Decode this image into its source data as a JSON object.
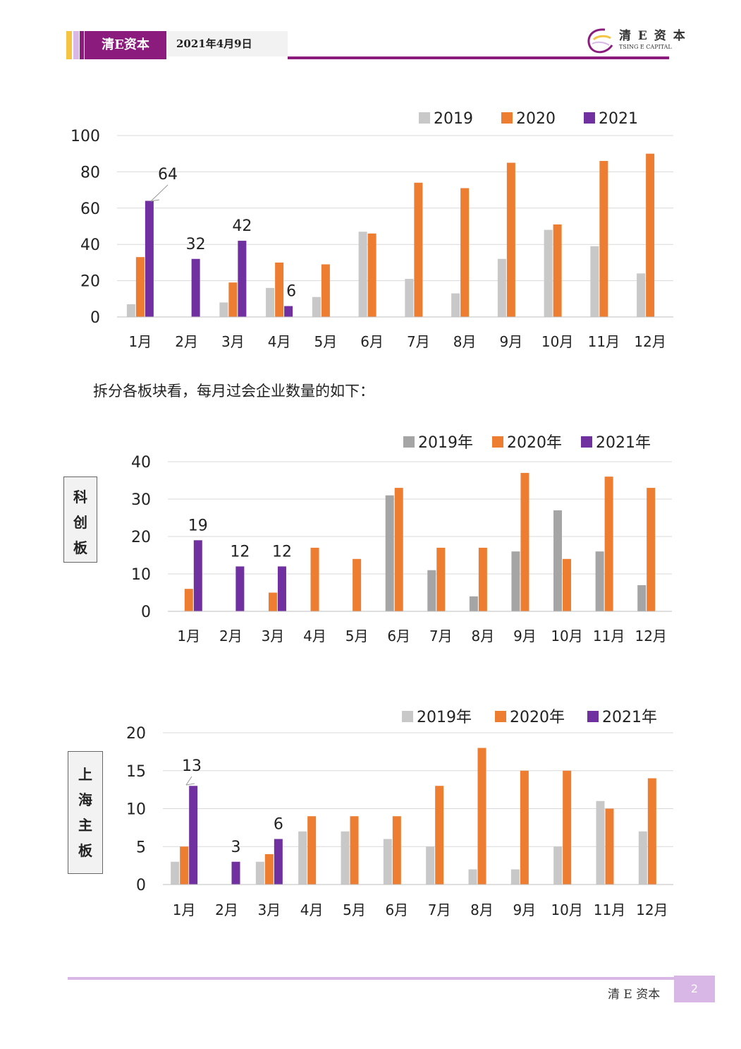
{
  "header": {
    "brand": "清E资本",
    "date": "2021年4月9日",
    "logo_cn": "清 E 资 本",
    "logo_en": "TSING E CAPITAL",
    "colors": {
      "brand": "#8b1c7e",
      "stripe_yellow": "#f4c542",
      "stripe_light": "#d9b8e6"
    }
  },
  "body_text": "拆分各板块看，每月过会企业数量的如下：",
  "boards": [
    {
      "label_chars": [
        "科",
        "创",
        "板"
      ]
    },
    {
      "label_chars": [
        "上",
        "海",
        "主",
        "板"
      ]
    }
  ],
  "footer": {
    "text": "清 E 资本",
    "page": "2"
  },
  "colors": {
    "gray_light": "#c8c8c8",
    "gray_dark": "#a5a5a5",
    "orange": "#ed7d31",
    "purple": "#7030a0"
  },
  "chart_data": [
    {
      "type": "bar",
      "categories": [
        "1月",
        "2月",
        "3月",
        "4月",
        "5月",
        "6月",
        "7月",
        "8月",
        "9月",
        "10月",
        "11月",
        "12月"
      ],
      "series": [
        {
          "name": "2019",
          "color": "#c8c8c8",
          "values": [
            7,
            0,
            8,
            16,
            11,
            47,
            21,
            13,
            32,
            48,
            39,
            24
          ]
        },
        {
          "name": "2020",
          "color": "#ed7d31",
          "values": [
            33,
            0,
            19,
            30,
            29,
            46,
            74,
            71,
            85,
            51,
            86,
            90
          ]
        },
        {
          "name": "2021",
          "color": "#7030a0",
          "values": [
            64,
            32,
            42,
            6,
            null,
            null,
            null,
            null,
            null,
            null,
            null,
            null
          ]
        }
      ],
      "ylim": [
        0,
        100
      ],
      "yticks": [
        0,
        20,
        40,
        60,
        80,
        100
      ],
      "data_labels": [
        "64",
        "32",
        "42",
        "6"
      ],
      "legend": "top-right",
      "grid": true
    },
    {
      "type": "bar",
      "categories": [
        "1月",
        "2月",
        "3月",
        "4月",
        "5月",
        "6月",
        "7月",
        "8月",
        "9月",
        "10月",
        "11月",
        "12月"
      ],
      "series": [
        {
          "name": "2019年",
          "color": "#a5a5a5",
          "values": [
            0,
            0,
            0,
            0,
            0,
            31,
            11,
            4,
            16,
            27,
            16,
            7
          ]
        },
        {
          "name": "2020年",
          "color": "#ed7d31",
          "values": [
            6,
            0,
            5,
            17,
            14,
            33,
            17,
            17,
            37,
            14,
            36,
            33
          ]
        },
        {
          "name": "2021年",
          "color": "#7030a0",
          "values": [
            19,
            12,
            12,
            null,
            null,
            null,
            null,
            null,
            null,
            null,
            null,
            null
          ]
        }
      ],
      "ylim": [
        0,
        40
      ],
      "yticks": [
        0,
        10,
        20,
        30,
        40
      ],
      "data_labels": [
        "19",
        "12",
        "12"
      ],
      "legend": "top-right",
      "grid": true
    },
    {
      "type": "bar",
      "categories": [
        "1月",
        "2月",
        "3月",
        "4月",
        "5月",
        "6月",
        "7月",
        "8月",
        "9月",
        "10月",
        "11月",
        "12月"
      ],
      "series": [
        {
          "name": "2019年",
          "color": "#c8c8c8",
          "values": [
            3,
            0,
            3,
            7,
            7,
            6,
            5,
            2,
            2,
            5,
            11,
            7
          ]
        },
        {
          "name": "2020年",
          "color": "#ed7d31",
          "values": [
            5,
            0,
            4,
            9,
            9,
            9,
            13,
            18,
            15,
            15,
            10,
            14
          ]
        },
        {
          "name": "2021年",
          "color": "#7030a0",
          "values": [
            13,
            3,
            6,
            null,
            null,
            null,
            null,
            null,
            null,
            null,
            null,
            null
          ]
        }
      ],
      "ylim": [
        0,
        20
      ],
      "yticks": [
        0,
        5,
        10,
        15,
        20
      ],
      "data_labels": [
        "13",
        "3",
        "6"
      ],
      "legend": "top-right",
      "grid": true
    }
  ]
}
